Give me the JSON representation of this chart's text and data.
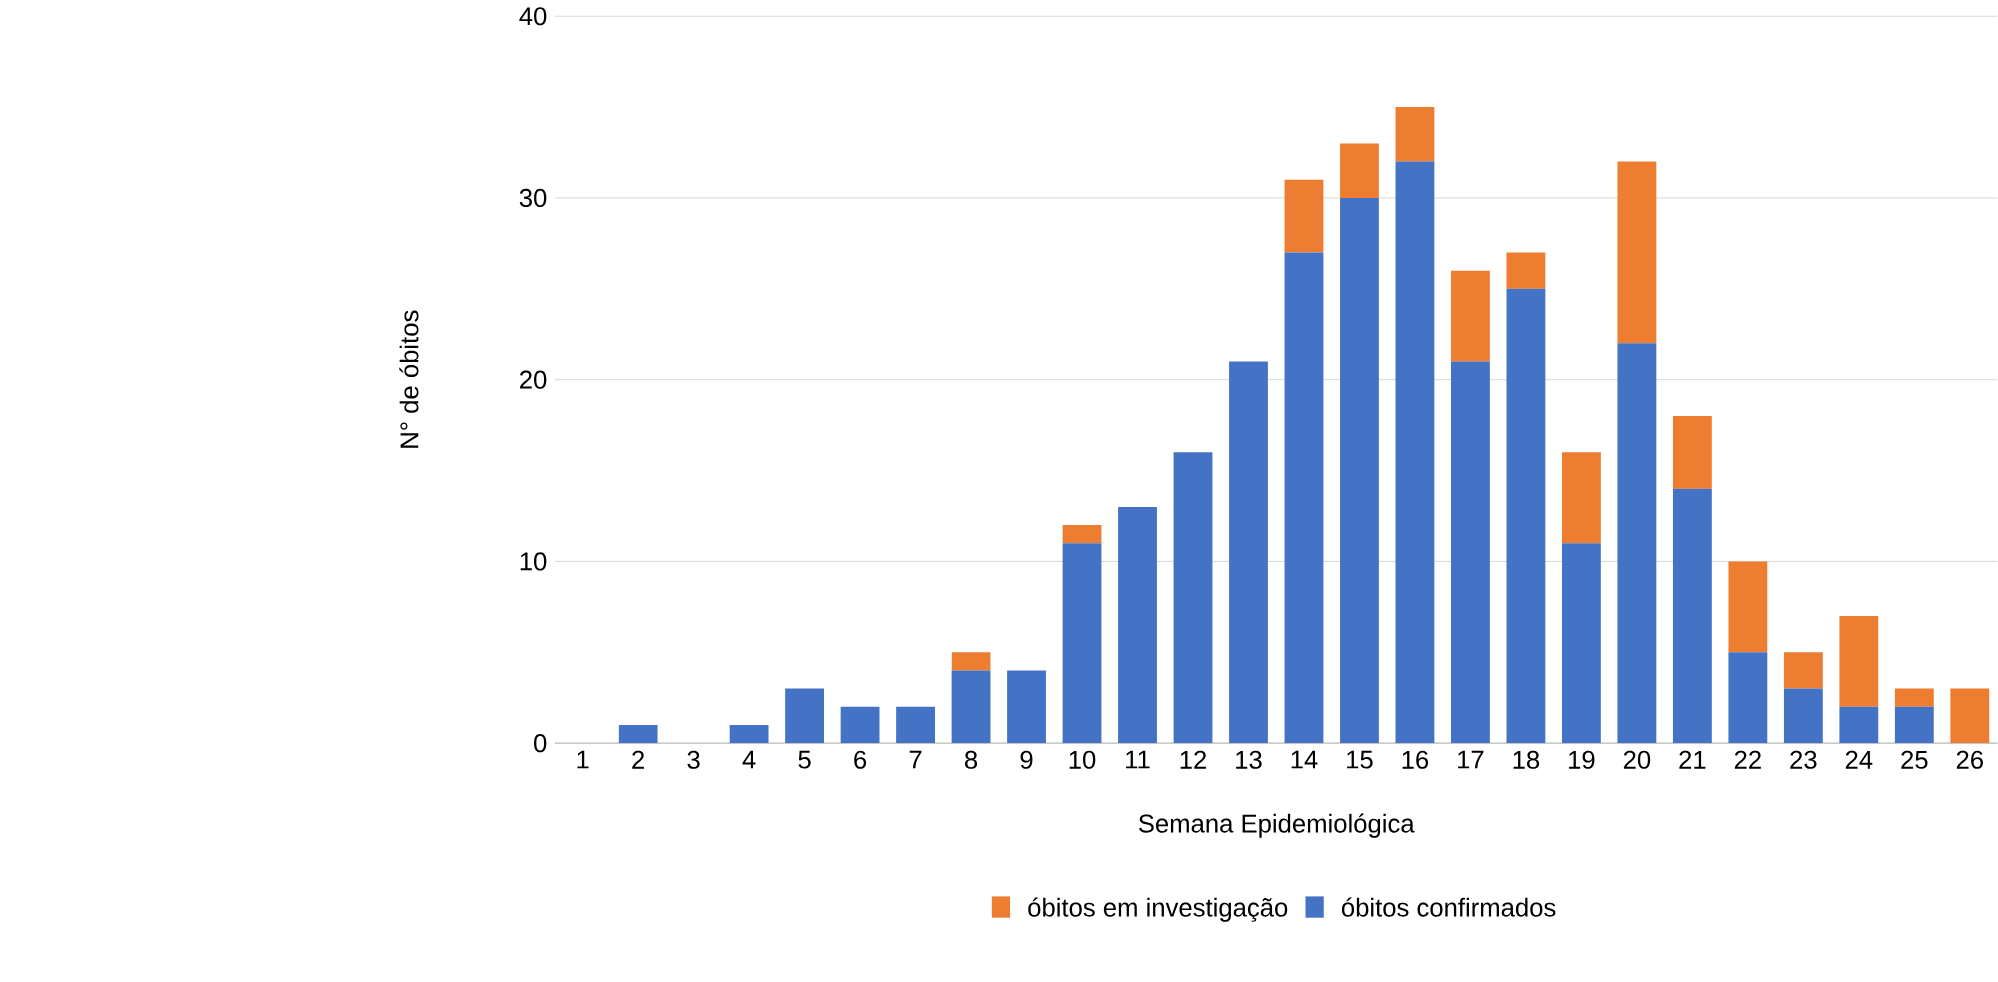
{
  "chart_data": {
    "type": "bar",
    "stacked": true,
    "xlabel": "Semana Epidemiológica",
    "ylabel": "N° de óbitos",
    "categories": [
      "1",
      "2",
      "3",
      "4",
      "5",
      "6",
      "7",
      "8",
      "9",
      "10",
      "11",
      "12",
      "13",
      "14",
      "15",
      "16",
      "17",
      "18",
      "19",
      "20",
      "21",
      "22",
      "23",
      "24",
      "25",
      "26"
    ],
    "series": [
      {
        "name": "óbitos confirmados",
        "color": "#4472c4",
        "values": [
          0,
          1,
          0,
          1,
          3,
          2,
          2,
          4,
          4,
          11,
          13,
          16,
          21,
          27,
          30,
          32,
          21,
          25,
          11,
          22,
          14,
          5,
          3,
          2,
          2,
          0
        ]
      },
      {
        "name": "óbitos em investigação",
        "color": "#ed7d31",
        "values": [
          0,
          0,
          0,
          0,
          0,
          0,
          0,
          1,
          0,
          1,
          0,
          0,
          0,
          4,
          3,
          3,
          5,
          2,
          5,
          10,
          4,
          5,
          2,
          5,
          1,
          3
        ]
      }
    ],
    "ylim": [
      0,
      40
    ],
    "yticks": [
      0,
      10,
      20,
      30,
      40
    ],
    "grid": "y",
    "legend": "bottom"
  }
}
